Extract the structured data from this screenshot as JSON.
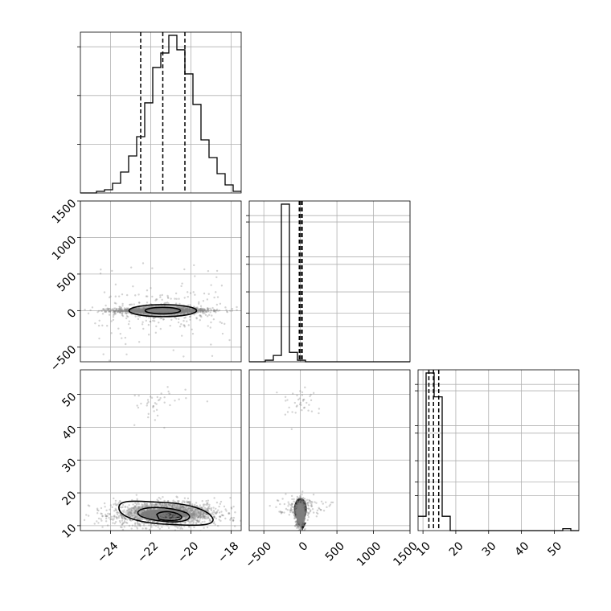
{
  "chart_data": {
    "type": "corner",
    "parameters": 3,
    "axes": [
      {
        "name": "",
        "range": [
          -25.5,
          -17.5
        ],
        "ticks": [
          -24,
          -22,
          -20,
          -18
        ],
        "tick_labels": [
          "−24",
          "−22",
          "−20",
          "−18"
        ],
        "quantiles": [
          -22.5,
          -21.4,
          -20.3
        ],
        "hist_edges_start": -25.5,
        "hist_bin_width": 0.4,
        "hist_counts": [
          0,
          0,
          1,
          2,
          6,
          13,
          23,
          35,
          56,
          78,
          87,
          98,
          89,
          74,
          55,
          33,
          22,
          12,
          5,
          1
        ]
      },
      {
        "name": "",
        "range": [
          -700,
          1500
        ],
        "ticks": [
          -500,
          0,
          500,
          1000,
          1500
        ],
        "tick_labels": [
          "−500",
          "0",
          "500",
          "1000",
          "1500"
        ],
        "quantiles": [
          -15,
          5,
          25
        ],
        "hist_edges_start": -700,
        "hist_bin_width": 110,
        "hist_counts": [
          0,
          0,
          1,
          4,
          100,
          6,
          1,
          0,
          0,
          0,
          0,
          0,
          0,
          0,
          0,
          0,
          0,
          0,
          0,
          0
        ]
      },
      {
        "name": "",
        "range": [
          8.5,
          57.5
        ],
        "ticks": [
          10,
          20,
          30,
          40,
          50
        ],
        "tick_labels": [
          "10",
          "20",
          "30",
          "40",
          "50"
        ],
        "quantiles": [
          11.8,
          13.2,
          14.8
        ],
        "hist_edges_start": 8.5,
        "hist_bin_width": 2.45,
        "hist_counts": [
          3,
          33,
          28,
          3,
          0,
          0,
          0,
          0,
          0,
          0,
          0,
          0,
          0,
          0,
          0,
          0,
          0,
          0,
          0.4,
          0
        ]
      }
    ],
    "grid": true
  }
}
